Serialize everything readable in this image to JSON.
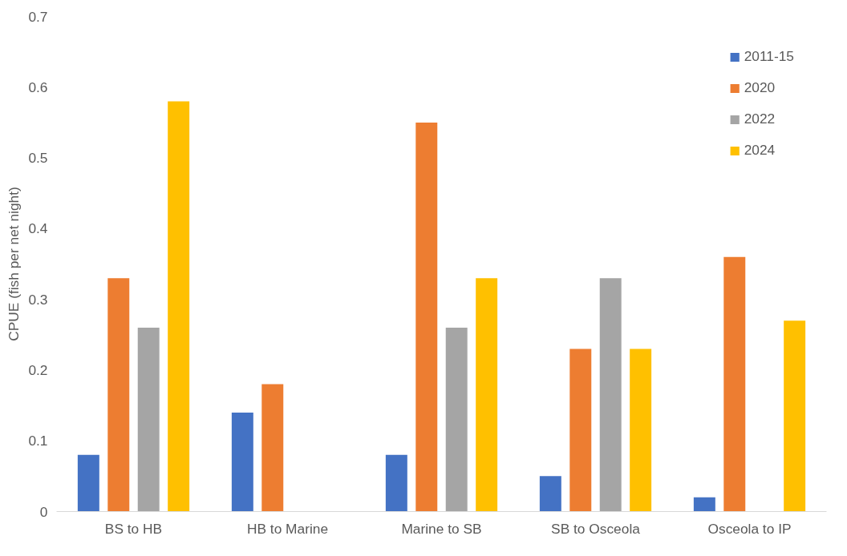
{
  "chart_data": {
    "type": "bar",
    "ylabel": "CPUE (fish per net night)",
    "categories": [
      "BS to HB",
      "HB to Marine",
      "Marine to SB",
      "SB to Osceola",
      "Osceola to IP"
    ],
    "series": [
      {
        "name": "2011-15",
        "color": "#4472c4",
        "values": [
          0.08,
          0.14,
          0.08,
          0.05,
          0.02
        ]
      },
      {
        "name": "2020",
        "color": "#ed7d31",
        "values": [
          0.33,
          0.18,
          0.55,
          0.23,
          0.36
        ]
      },
      {
        "name": "2022",
        "color": "#a5a5a5",
        "values": [
          0.26,
          null,
          0.26,
          0.33,
          null
        ]
      },
      {
        "name": "2024",
        "color": "#ffc000",
        "values": [
          0.58,
          null,
          0.33,
          0.23,
          0.27
        ]
      }
    ],
    "ylim": [
      0,
      0.7
    ],
    "yticks": [
      0,
      0.1,
      0.2,
      0.3,
      0.4,
      0.5,
      0.6,
      0.7
    ],
    "grid": false,
    "legend": "top right"
  }
}
